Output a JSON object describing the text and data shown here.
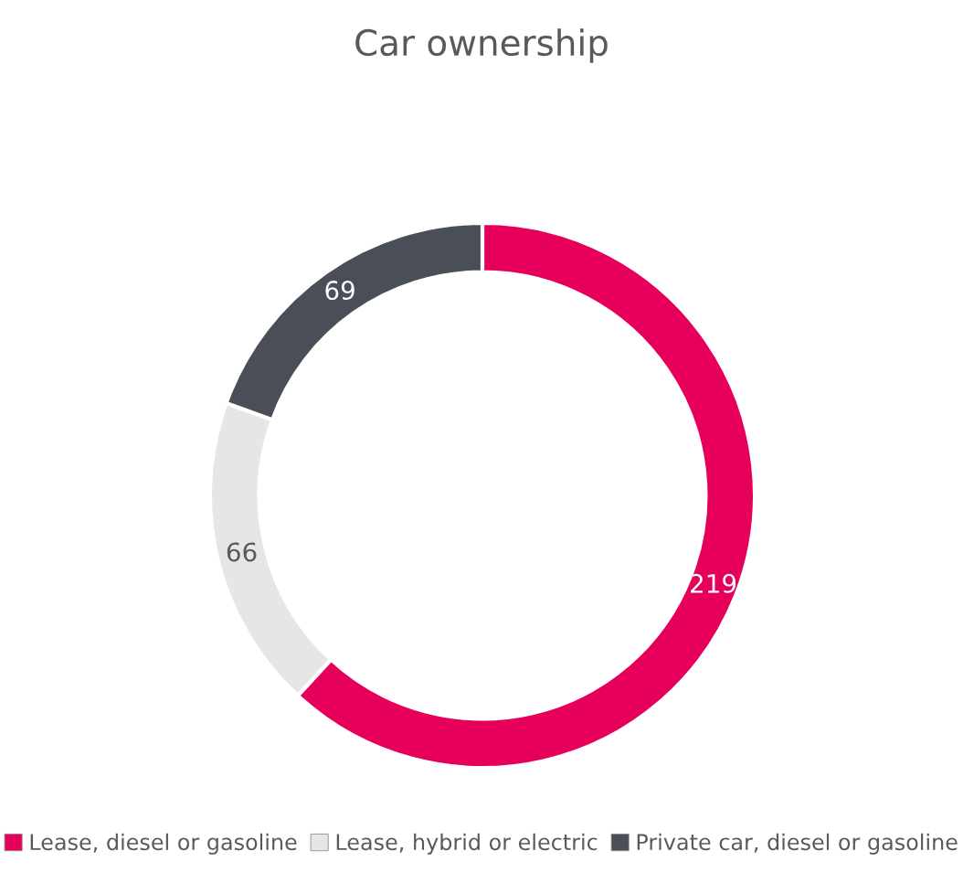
{
  "chart_data": {
    "type": "donut",
    "title": "Car ownership",
    "categories": [
      "Lease, diesel or gasoline",
      "Lease, hybrid or electric",
      "Private car, diesel or gasoline"
    ],
    "values": [
      219,
      66,
      69
    ],
    "colors": [
      "#e6005c",
      "#e6e6e6",
      "#4a4f57"
    ],
    "data_labels": true,
    "legend": "bottom"
  }
}
